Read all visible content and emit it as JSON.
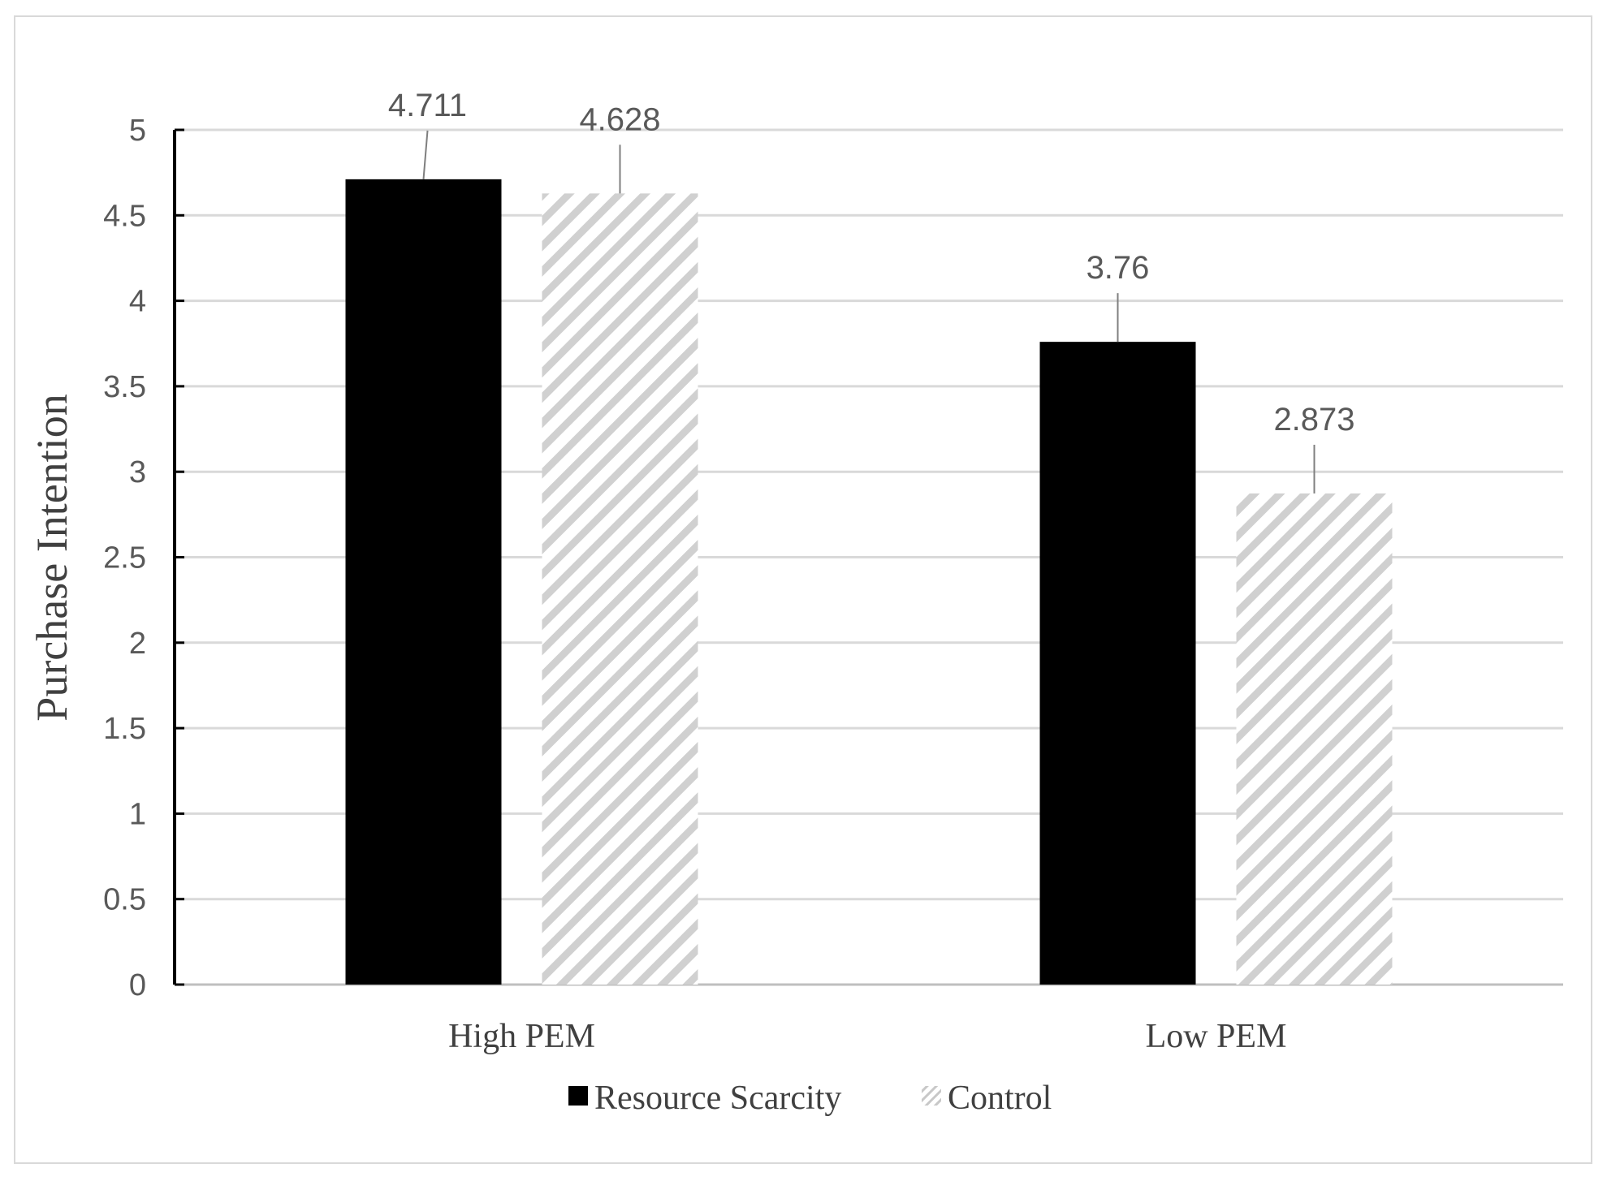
{
  "chart_data": {
    "type": "bar",
    "title": "",
    "xlabel": "",
    "ylabel": "Purchase Intention",
    "categories": [
      "High PEM",
      "Low PEM"
    ],
    "series": [
      {
        "name": "Resource Scarcity",
        "values": [
          4.711,
          3.76
        ],
        "color": "#000000",
        "fill": "solid"
      },
      {
        "name": "Control",
        "values": [
          4.628,
          2.873
        ],
        "color": "#d0d0d0",
        "fill": "diagonal-hatch"
      }
    ],
    "data_labels": [
      [
        "4.711",
        "3.76"
      ],
      [
        "4.628",
        "2.873"
      ]
    ],
    "ylim": [
      0,
      5
    ],
    "yticks": [
      "0",
      "0.5",
      "1",
      "1.5",
      "2",
      "2.5",
      "3",
      "3.5",
      "4",
      "4.5",
      "5"
    ],
    "grid": true,
    "legend_position": "bottom"
  }
}
